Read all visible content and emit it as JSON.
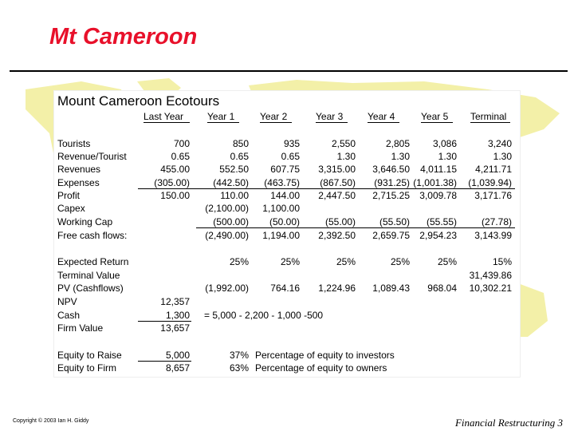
{
  "slide": {
    "title": "Mt Cameroon",
    "footer_left": "Copyright © 2003 Ian H. Giddy",
    "footer_right": "Financial Restructuring 3"
  },
  "sheet": {
    "title": "Mount Cameroon Ecotours",
    "headers": [
      "Last Year",
      "Year 1",
      "Year 2",
      "Year 3",
      "Year 4",
      "Year 5",
      "Terminal"
    ],
    "rows": [
      {
        "label": "Tourists",
        "values": [
          "700",
          "850",
          "935",
          "2,550",
          "2,805",
          "3,086",
          "3,240"
        ]
      },
      {
        "label": "Revenue/Tourist",
        "values": [
          "0.65",
          "0.65",
          "0.65",
          "1.30",
          "1.30",
          "1.30",
          "1.30"
        ]
      },
      {
        "label": "Revenues",
        "values": [
          "455.00",
          "552.50",
          "607.75",
          "3,315.00",
          "3,646.50",
          "4,011.15",
          "4,211.71"
        ]
      },
      {
        "label": "Expenses",
        "values": [
          "(305.00)",
          "(442.50)",
          "(463.75)",
          "(867.50)",
          "(931.25)",
          "(1,001.38)",
          "(1,039.94)"
        ]
      },
      {
        "label": "Profit",
        "values": [
          "150.00",
          "110.00",
          "144.00",
          "2,447.50",
          "2,715.25",
          "3,009.78",
          "3,171.76"
        ]
      },
      {
        "label": " Capex",
        "values": [
          "",
          "(2,100.00)",
          "1,100.00",
          "",
          "",
          "",
          ""
        ]
      },
      {
        "label": " Working Cap",
        "values": [
          "",
          "(500.00)",
          "(50.00)",
          "(55.00)",
          "(55.50)",
          "(55.55)",
          "(27.78)"
        ]
      },
      {
        "label": "Free cash flows:",
        "values": [
          "",
          "(2,490.00)",
          "1,194.00",
          "2,392.50",
          "2,659.75",
          "2,954.23",
          "3,143.99"
        ]
      },
      {
        "label": "Expected Return",
        "values": [
          "",
          "25%",
          "25%",
          "25%",
          "25%",
          "25%",
          "15%"
        ]
      },
      {
        "label": "Terminal Value",
        "values": [
          "",
          "",
          "",
          "",
          "",
          "",
          "31,439.86"
        ]
      },
      {
        "label": "PV (Cashflows)",
        "values": [
          "",
          "(1,992.00)",
          "764.16",
          "1,224.96",
          "1,089.43",
          "968.04",
          "10,302.21"
        ]
      },
      {
        "label": "NPV",
        "values": [
          "12,357",
          "",
          "",
          "",
          "",
          "",
          ""
        ]
      },
      {
        "label": "Cash",
        "values": [
          "1,300",
          "",
          "",
          "",
          "",
          "",
          ""
        ]
      },
      {
        "label": "Firm Value",
        "values": [
          "13,657",
          "",
          "",
          "",
          "",
          "",
          ""
        ]
      },
      {
        "label": "Equity to Raise",
        "values": [
          "5,000",
          "37%",
          "",
          "",
          "",
          "",
          ""
        ]
      },
      {
        "label": "Equity to Firm",
        "values": [
          "8,657",
          "63%",
          "",
          "",
          "",
          "",
          ""
        ]
      }
    ],
    "cash_note": "= 5,000 - 2,200 - 1,000 -500",
    "equity_notes": [
      "Percentage of equity to investors",
      "Percentage of equity to owners"
    ]
  },
  "colors": {
    "title": "#e8102a",
    "map": "#f3f0a8"
  }
}
